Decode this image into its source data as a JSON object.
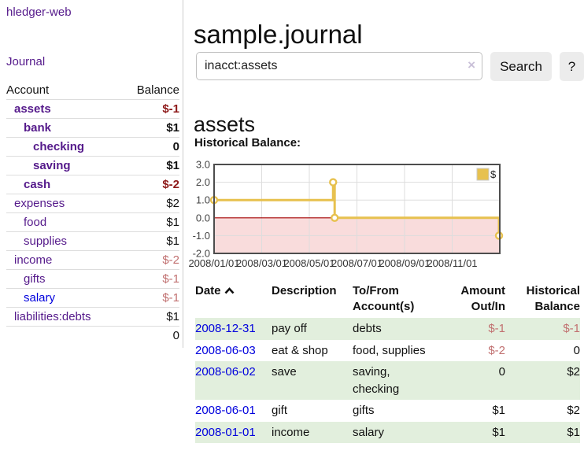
{
  "app": {
    "title": "hledger-web"
  },
  "sidebar": {
    "nav_journal": "Journal",
    "accounts": {
      "header_account": "Account",
      "header_balance": "Balance",
      "rows": [
        {
          "label": "assets",
          "indent": 1,
          "bold": true,
          "link": "purple",
          "balance": "$-1"
        },
        {
          "label": "bank",
          "indent": 2,
          "bold": true,
          "link": "purple",
          "balance": "$1"
        },
        {
          "label": "checking",
          "indent": 3,
          "bold": true,
          "link": "purple",
          "balance": "0"
        },
        {
          "label": "saving",
          "indent": 3,
          "bold": true,
          "link": "purple",
          "balance": "$1"
        },
        {
          "label": "cash",
          "indent": 2,
          "bold": true,
          "link": "purple",
          "balance": "$-2"
        },
        {
          "label": "expenses",
          "indent": 1,
          "bold": false,
          "link": "purple",
          "balance": "$2"
        },
        {
          "label": "food",
          "indent": 2,
          "bold": false,
          "link": "purple",
          "balance": "$1"
        },
        {
          "label": "supplies",
          "indent": 2,
          "bold": false,
          "link": "purple",
          "balance": "$1"
        },
        {
          "label": "income",
          "indent": 1,
          "bold": false,
          "link": "purple",
          "balance": "$-2"
        },
        {
          "label": "gifts",
          "indent": 2,
          "bold": false,
          "link": "purple",
          "balance": "$-1"
        },
        {
          "label": "salary",
          "indent": 2,
          "bold": false,
          "link": "blue",
          "balance": "$-1"
        },
        {
          "label": "liabilities:debts",
          "indent": 1,
          "bold": false,
          "link": "purple",
          "balance": "$1"
        }
      ],
      "total": "0"
    }
  },
  "main": {
    "title": "sample.journal",
    "search": {
      "value": "inacct:assets",
      "clear_icon": "×",
      "button": "Search",
      "help_button": "?"
    },
    "account_heading": "assets",
    "chart_label": "Historical Balance:"
  },
  "chart_data": {
    "type": "line",
    "title": "Historical Balance:",
    "step": true,
    "series": [
      {
        "name": "$",
        "points": [
          [
            "2008-01-01",
            1.0
          ],
          [
            "2008-06-01",
            2.0
          ],
          [
            "2008-06-03",
            0.0
          ],
          [
            "2008-12-31",
            -1.0
          ]
        ]
      }
    ],
    "x_tick_months": [
      0,
      2,
      4,
      6,
      8,
      10
    ],
    "x_tick_labels": [
      "2008/01/01",
      "2008/03/01",
      "2008/05/01",
      "2008/07/01",
      "2008/09/01",
      "2008/11/01"
    ],
    "x_range_months": 12,
    "y_ticks": [
      3,
      2,
      1,
      0,
      -1,
      -2
    ],
    "y_tick_labels": [
      "3.0",
      "2.0",
      "1.0",
      "0.0",
      "-1.0",
      "-2.0"
    ],
    "ylim": [
      -2,
      3
    ],
    "grid": true,
    "legend": {
      "label": "$",
      "position": "top-right"
    },
    "colors": {
      "line": "#e7c14f",
      "marker_fill": "#ffffff",
      "negative_fill": "#f9dcdc",
      "zero_line": "#a40000",
      "grid": "#dddddd",
      "border": "#4d4d4d",
      "tick_text": "#444444",
      "legend_square": "#e7c14f"
    }
  },
  "transactions": {
    "headers": {
      "date": "Date",
      "description": "Description",
      "accounts": "To/From Account(s)",
      "amount": "Amount Out/In",
      "balance": "Historical Balance"
    },
    "sort_icon": "chevron-up",
    "rows": [
      {
        "date": "2008-12-31",
        "description": "pay off",
        "accounts": "debts",
        "amount": "$-1",
        "balance": "$-1"
      },
      {
        "date": "2008-06-03",
        "description": "eat & shop",
        "accounts": "food, supplies",
        "amount": "$-2",
        "balance": "0"
      },
      {
        "date": "2008-06-02",
        "description": "save",
        "accounts": "saving, checking",
        "amount": "0",
        "balance": "$2"
      },
      {
        "date": "2008-06-01",
        "description": "gift",
        "accounts": "gifts",
        "amount": "$1",
        "balance": "$2"
      },
      {
        "date": "2008-01-01",
        "description": "income",
        "accounts": "salary",
        "amount": "$1",
        "balance": "$1"
      }
    ]
  },
  "colors": {
    "link_purple": "#551a8b",
    "link_blue": "#0000dd",
    "negative_strong": "#8e1a1a",
    "negative_soft": "#c17070",
    "row_stripe_green": "#e2efdd",
    "chart_line_gold": "#e7c14f"
  }
}
